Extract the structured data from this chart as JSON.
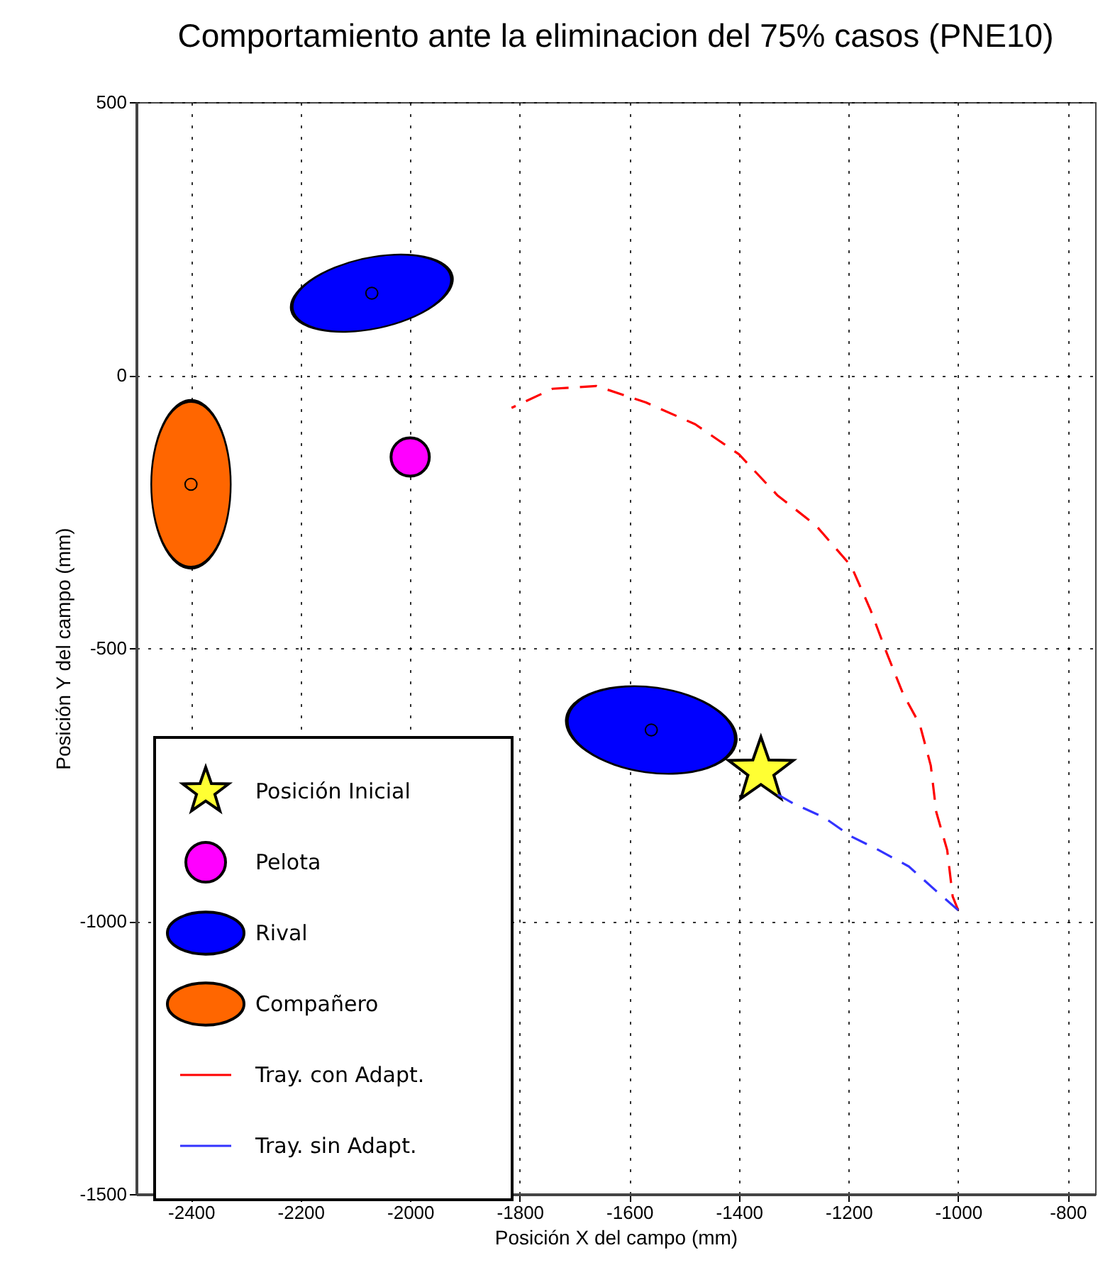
{
  "chart_data": {
    "type": "scatter",
    "title": "Comportamiento ante la eliminacion del 75% casos (PNE10)",
    "xlabel": "Posición X del campo (mm)",
    "ylabel": "Posición Y del campo (mm)",
    "xlim": [
      -2500,
      -750
    ],
    "ylim": [
      -1500,
      500
    ],
    "xticks": [
      -2400,
      -2200,
      -2000,
      -1800,
      -1600,
      -1400,
      -1200,
      -1000,
      -800
    ],
    "yticks": [
      -1500,
      -1000,
      -500,
      0,
      500
    ],
    "grid": true,
    "legend": "bottom left",
    "series": [
      {
        "name": "Posición Inicial",
        "marker": "star",
        "color": "#ffff33",
        "x": [
          -1360
        ],
        "values": [
          -725
        ]
      },
      {
        "name": "Pelota",
        "marker": "circle",
        "color": "#ff00ff",
        "x": [
          -2000
        ],
        "values": [
          -150
        ]
      },
      {
        "name": "Rival",
        "marker": "circle",
        "color": "#0000ff",
        "x": [
          -2070,
          -1560
        ],
        "values": [
          150,
          -650
        ]
      },
      {
        "name": "Compañero",
        "marker": "circle",
        "color": "#ff6600",
        "x": [
          -2400
        ],
        "values": [
          -200
        ]
      },
      {
        "name": "Tray. con Adapt.",
        "type": "line",
        "line_style": "dashed",
        "color": "#ff0000",
        "x": [
          -1000,
          -1010,
          -1020,
          -1040,
          -1050,
          -1070,
          -1100,
          -1130,
          -1160,
          -1195,
          -1260,
          -1330,
          -1400,
          -1480,
          -1570,
          -1660,
          -1740,
          -1815
        ],
        "values": [
          -980,
          -955,
          -870,
          -800,
          -715,
          -640,
          -585,
          -510,
          -430,
          -350,
          -275,
          -220,
          -145,
          -90,
          -50,
          -20,
          -25,
          -60
        ]
      },
      {
        "name": "Tray. sin Adapt.",
        "type": "line",
        "line_style": "dashed",
        "color": "#3333ff",
        "x": [
          -1000,
          -1040,
          -1090,
          -1145,
          -1195,
          -1245,
          -1300,
          -1335
        ],
        "values": [
          -980,
          -945,
          -900,
          -870,
          -845,
          -810,
          -785,
          -765
        ]
      }
    ]
  }
}
